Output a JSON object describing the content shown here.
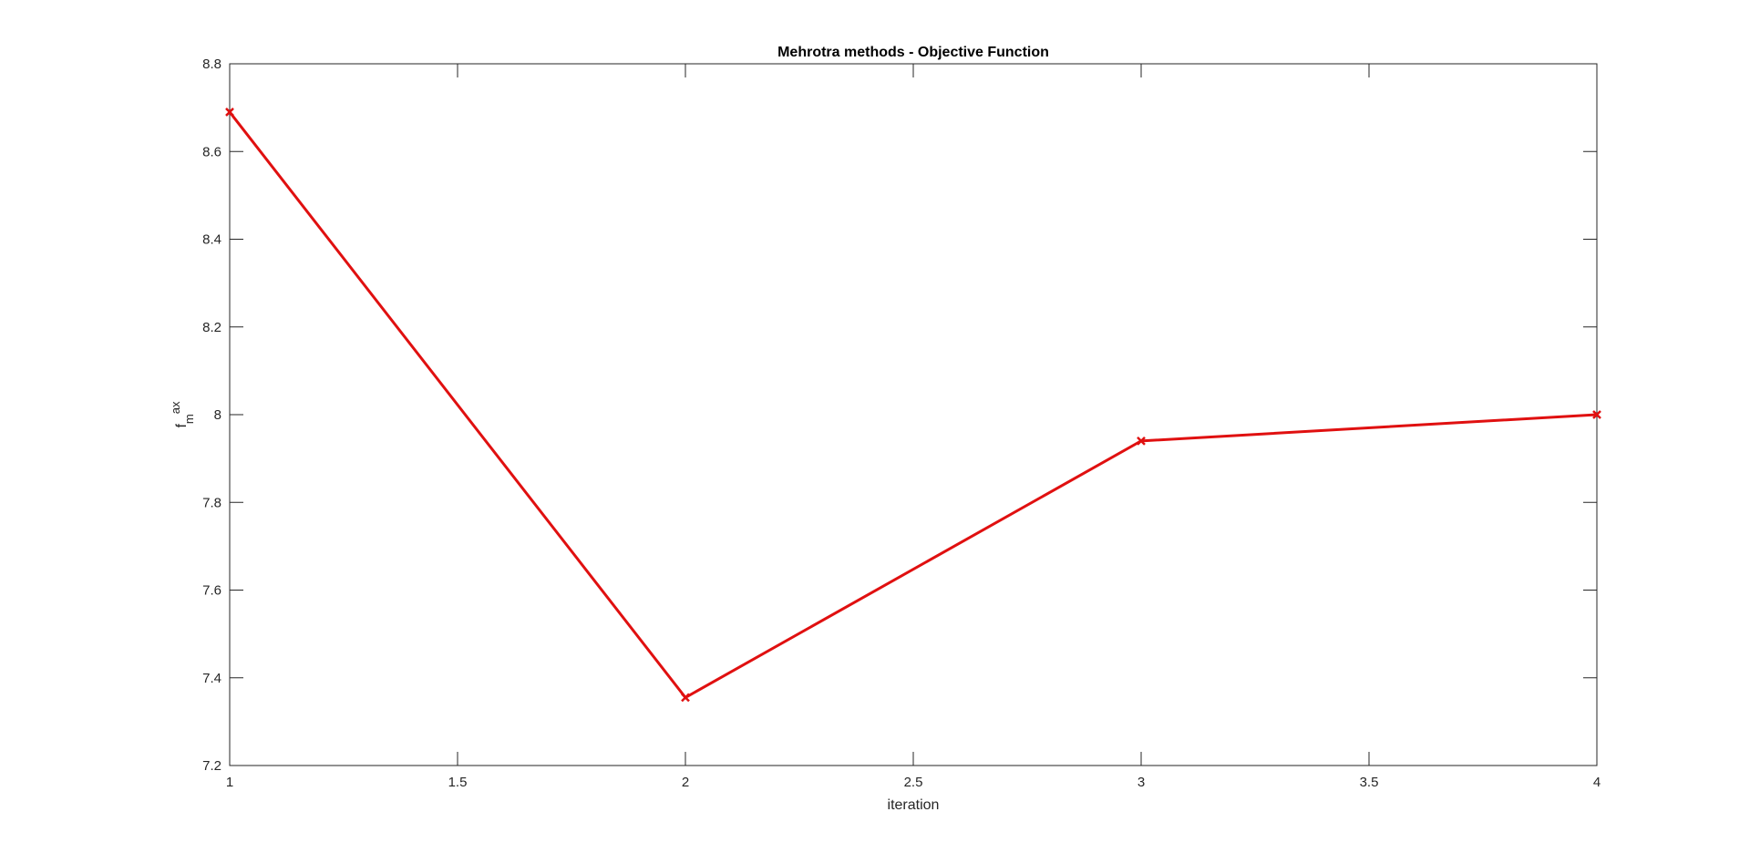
{
  "chart_data": {
    "type": "line",
    "title": "Mehrotra methods - Objective Function",
    "xlabel": "iteration",
    "ylabel": {
      "base": "f",
      "sub": "m",
      "sup": "ax"
    },
    "xlim": [
      1,
      4
    ],
    "ylim": [
      7.2,
      8.8
    ],
    "xticks": [
      1,
      1.5,
      2,
      2.5,
      3,
      3.5,
      4
    ],
    "xtick_labels": [
      "1",
      "1.5",
      "2",
      "2.5",
      "3",
      "3.5",
      "4"
    ],
    "yticks": [
      7.2,
      7.4,
      7.6,
      7.8,
      8.0,
      8.2,
      8.4,
      8.6,
      8.8
    ],
    "ytick_labels": [
      "7.2",
      "7.4",
      "7.6",
      "7.8",
      "8",
      "8.2",
      "8.4",
      "8.6",
      "8.8"
    ],
    "grid": false,
    "series": [
      {
        "x": [
          1,
          2,
          3,
          4
        ],
        "values": [
          8.69,
          7.355,
          7.94,
          8.0
        ],
        "color": "#e01010",
        "marker": "x"
      }
    ]
  }
}
